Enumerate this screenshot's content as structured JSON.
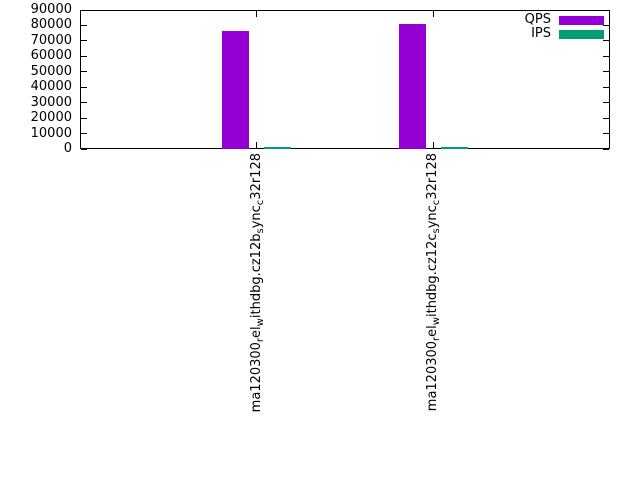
{
  "chart_data": {
    "type": "bar",
    "title": "",
    "xlabel": "",
    "ylabel": "",
    "ylim": [
      0,
      90000
    ],
    "ytick_step": 10000,
    "ytick_labels": [
      "0",
      "10000",
      "20000",
      "30000",
      "40000",
      "50000",
      "60000",
      "70000",
      "80000",
      "90000"
    ],
    "grid": false,
    "legend_position": "top-right-inside",
    "background_color": "#ffffff",
    "axis_color": "#000000",
    "categories": [
      {
        "label": "ma120300_rel_withdbg.cz12b_sync_c32r128",
        "segments": [
          {
            "t": "ma120300"
          },
          {
            "t": "r",
            "sub": true
          },
          {
            "t": "el"
          },
          {
            "t": "w",
            "sub": true
          },
          {
            "t": "ithdbg.cz12b"
          },
          {
            "t": "s",
            "sub": true
          },
          {
            "t": "ync"
          },
          {
            "t": "c",
            "sub": true
          },
          {
            "t": "32r128"
          }
        ]
      },
      {
        "label": "ma120300_rel_withdbg.cz12c_sync_c32r128",
        "segments": [
          {
            "t": "ma120300"
          },
          {
            "t": "r",
            "sub": true
          },
          {
            "t": "el"
          },
          {
            "t": "w",
            "sub": true
          },
          {
            "t": "ithdbg.cz12c"
          },
          {
            "t": "s",
            "sub": true
          },
          {
            "t": "ync"
          },
          {
            "t": "c",
            "sub": true
          },
          {
            "t": "32r128"
          }
        ]
      }
    ],
    "series": [
      {
        "name": "QPS",
        "color": "#9400d3",
        "values": [
          76500,
          81000
        ]
      },
      {
        "name": "IPS",
        "color": "#009e73",
        "values": [
          1300,
          1200
        ]
      }
    ]
  }
}
